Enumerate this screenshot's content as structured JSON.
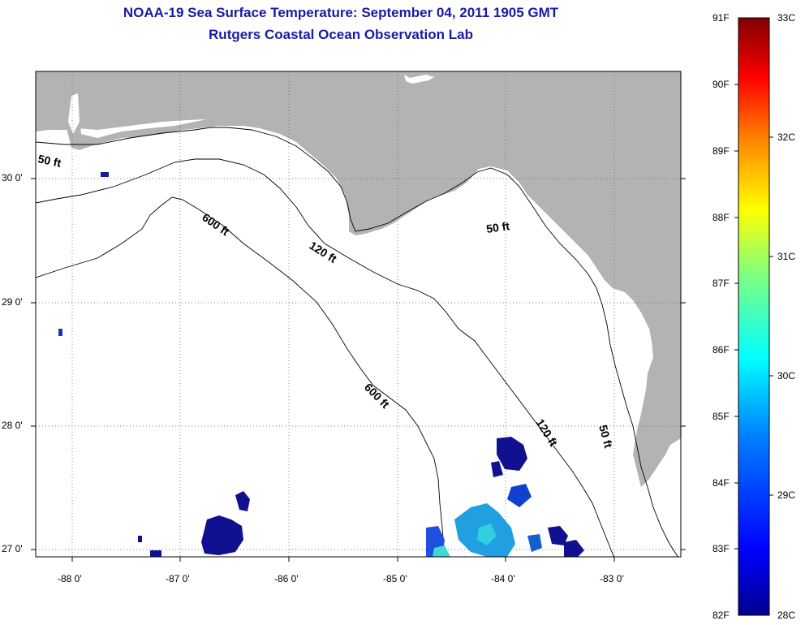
{
  "title": "NOAA-19 Sea Surface Temperature:  September 04, 2011 1905 GMT",
  "subtitle": "Rutgers Coastal Ocean Observation Lab",
  "map": {
    "lon_ticks": [
      "-88 0'",
      "-87 0'",
      "-86 0'",
      "-85 0'",
      "-84 0'",
      "-83 0'"
    ],
    "lat_ticks": [
      "30 0'",
      "29 0'",
      "28 0'",
      "27 0'"
    ],
    "contours": [
      {
        "label": "50 ft"
      },
      {
        "label": "50 ft"
      },
      {
        "label": "50 ft"
      },
      {
        "label": "120 ft"
      },
      {
        "label": "120 ft"
      },
      {
        "label": "600 ft"
      },
      {
        "label": "600 ft"
      }
    ],
    "land_color": "#b3b3b3",
    "water_color": "#ffffff"
  },
  "colorbar": {
    "fahrenheit": [
      "91F",
      "90F",
      "89F",
      "88F",
      "87F",
      "86F",
      "85F",
      "84F",
      "83F",
      "82F"
    ],
    "celsius": [
      "33C",
      "32C",
      "31C",
      "30C",
      "29C",
      "28C"
    ],
    "range_f": [
      82,
      91
    ],
    "range_c": [
      28,
      33
    ],
    "colors": [
      "#00008f",
      "#0000ff",
      "#0080ff",
      "#00ffff",
      "#80ff80",
      "#ffff00",
      "#ff8000",
      "#ff0000",
      "#800000"
    ]
  }
}
